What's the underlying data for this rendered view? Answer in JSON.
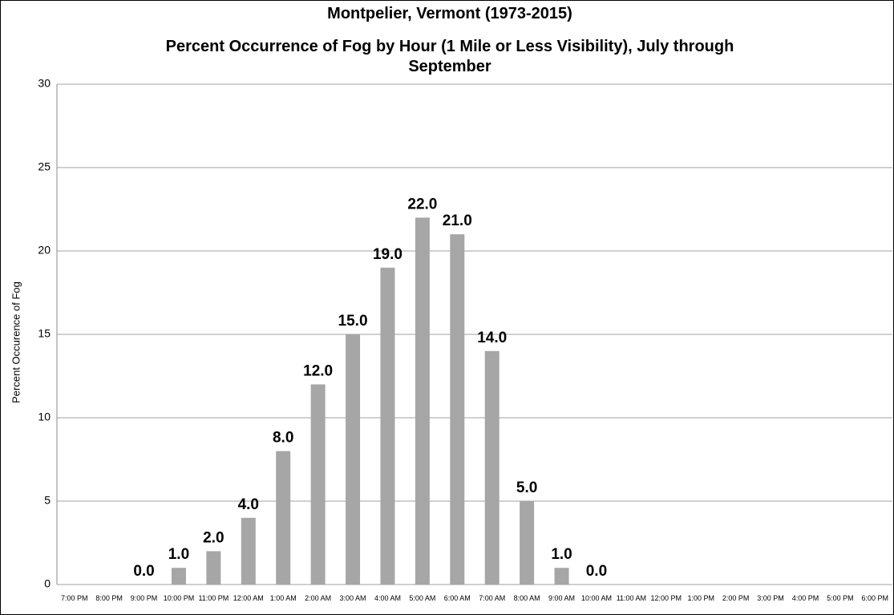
{
  "chart_data": {
    "type": "bar",
    "title": "Montpelier, Vermont (1973-2015)",
    "subtitle": "Percent Occurrence of Fog by Hour (1 Mile or Less Visibility), July through September",
    "y_label": "Percent Occurence of Fog",
    "categories": [
      "7:00 PM",
      "8:00 PM",
      "9:00 PM",
      "10:00 PM",
      "11:00 PM",
      "12:00 AM",
      "1:00 AM",
      "2:00 AM",
      "3:00 AM",
      "4:00 AM",
      "5:00 AM",
      "6:00 AM",
      "7:00 AM",
      "8:00 AM",
      "9:00 AM",
      "10:00 AM",
      "11:00 AM",
      "12:00 PM",
      "1:00 PM",
      "2:00 PM",
      "3:00 PM",
      "4:00 PM",
      "5:00 PM",
      "6:00 PM"
    ],
    "values": [
      null,
      null,
      0,
      1,
      2,
      4,
      8,
      12,
      15,
      19,
      22,
      21,
      14,
      5,
      1,
      0,
      null,
      null,
      null,
      null,
      null,
      null,
      null,
      null
    ],
    "value_labels": [
      null,
      null,
      "0.0",
      "1.0",
      "2.0",
      "4.0",
      "8.0",
      "12.0",
      "15.0",
      "19.0",
      "22.0",
      "21.0",
      "14.0",
      "5.0",
      "1.0",
      "0.0",
      null,
      null,
      null,
      null,
      null,
      null,
      null,
      null
    ],
    "color": "#a6a6a6",
    "ylim": [
      0,
      30
    ],
    "yticks": [
      0,
      5,
      10,
      15,
      20,
      25,
      30
    ],
    "grid": true
  }
}
